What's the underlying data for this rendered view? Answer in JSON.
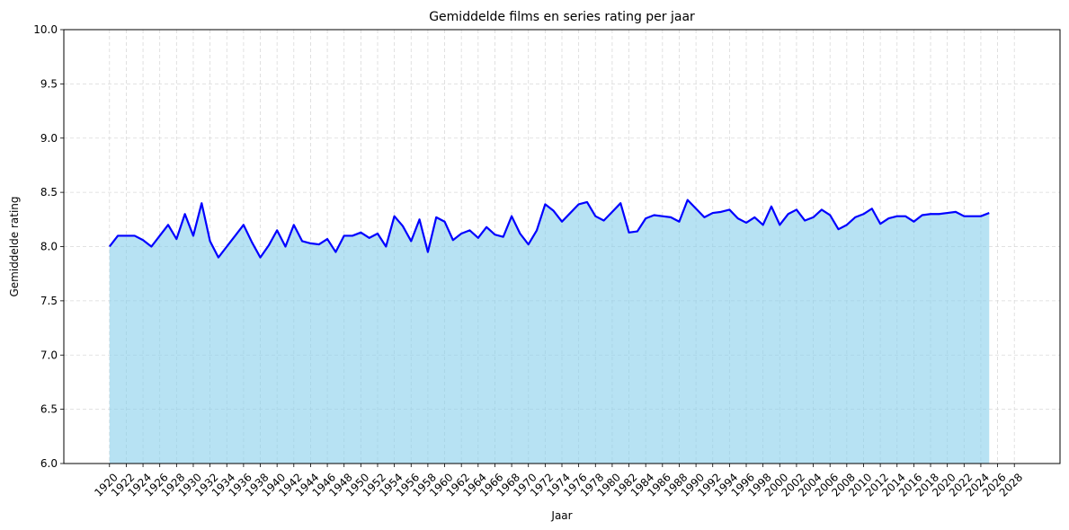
{
  "chart_data": {
    "type": "area",
    "title": "Gemiddelde films en series rating per jaar",
    "xlabel": "Jaar",
    "ylabel": "Gemiddelde rating",
    "xlim": [
      1920,
      2028
    ],
    "ylim": [
      6.0,
      10.0
    ],
    "x_ticks": [
      1920,
      1922,
      1924,
      1926,
      1928,
      1930,
      1932,
      1934,
      1936,
      1938,
      1940,
      1942,
      1944,
      1946,
      1948,
      1950,
      1952,
      1954,
      1956,
      1958,
      1960,
      1962,
      1964,
      1966,
      1968,
      1970,
      1972,
      1974,
      1976,
      1978,
      1980,
      1982,
      1984,
      1986,
      1988,
      1990,
      1992,
      1994,
      1996,
      1998,
      2000,
      2002,
      2004,
      2006,
      2008,
      2010,
      2012,
      2014,
      2016,
      2018,
      2020,
      2022,
      2024,
      2026,
      2028
    ],
    "y_ticks": [
      6.0,
      6.5,
      7.0,
      7.5,
      8.0,
      8.5,
      9.0,
      9.5,
      10.0
    ],
    "y_tick_labels": [
      "6.0",
      "6.5",
      "7.0",
      "7.5",
      "8.0",
      "8.5",
      "9.0",
      "9.5",
      "10.0"
    ],
    "grid": true,
    "line_color": "#0000ff",
    "fill_color": "#87ceeb",
    "x": [
      1920,
      1921,
      1922,
      1923,
      1924,
      1925,
      1926,
      1927,
      1928,
      1929,
      1930,
      1931,
      1932,
      1933,
      1934,
      1935,
      1936,
      1937,
      1938,
      1939,
      1940,
      1941,
      1942,
      1943,
      1944,
      1945,
      1946,
      1947,
      1948,
      1949,
      1950,
      1951,
      1952,
      1953,
      1954,
      1955,
      1956,
      1957,
      1958,
      1959,
      1960,
      1961,
      1962,
      1963,
      1964,
      1965,
      1966,
      1967,
      1968,
      1969,
      1970,
      1971,
      1972,
      1973,
      1974,
      1975,
      1976,
      1977,
      1978,
      1979,
      1980,
      1981,
      1982,
      1983,
      1984,
      1985,
      1986,
      1987,
      1988,
      1989,
      1990,
      1991,
      1992,
      1993,
      1994,
      1995,
      1996,
      1997,
      1998,
      1999,
      2000,
      2001,
      2002,
      2003,
      2004,
      2005,
      2006,
      2007,
      2008,
      2009,
      2010,
      2011,
      2012,
      2013,
      2014,
      2015,
      2016,
      2017,
      2018,
      2019,
      2020,
      2021,
      2022,
      2023,
      2024,
      2025
    ],
    "values": [
      8.0,
      8.1,
      8.1,
      8.1,
      8.06,
      8.0,
      8.1,
      8.2,
      8.07,
      8.3,
      8.1,
      8.4,
      8.05,
      7.9,
      8.0,
      8.1,
      8.2,
      8.04,
      7.9,
      8.01,
      8.15,
      8.0,
      8.2,
      8.05,
      8.03,
      8.02,
      8.07,
      7.95,
      8.1,
      8.1,
      8.13,
      8.08,
      8.12,
      8.0,
      8.28,
      8.19,
      8.05,
      8.25,
      7.95,
      8.27,
      8.23,
      8.06,
      8.12,
      8.15,
      8.08,
      8.18,
      8.11,
      8.09,
      8.28,
      8.12,
      8.02,
      8.15,
      8.39,
      8.33,
      8.23,
      8.31,
      8.39,
      8.41,
      8.28,
      8.24,
      8.32,
      8.4,
      8.13,
      8.14,
      8.26,
      8.29,
      8.28,
      8.27,
      8.23,
      8.43,
      8.35,
      8.27,
      8.31,
      8.32,
      8.34,
      8.26,
      8.22,
      8.27,
      8.2,
      8.37,
      8.2,
      8.3,
      8.34,
      8.24,
      8.27,
      8.34,
      8.29,
      8.16,
      8.2,
      8.27,
      8.3,
      8.35,
      8.21,
      8.26,
      8.28,
      8.28,
      8.23,
      8.29,
      8.3,
      8.3,
      8.31,
      8.32,
      8.28,
      8.28,
      8.28,
      8.31
    ]
  }
}
